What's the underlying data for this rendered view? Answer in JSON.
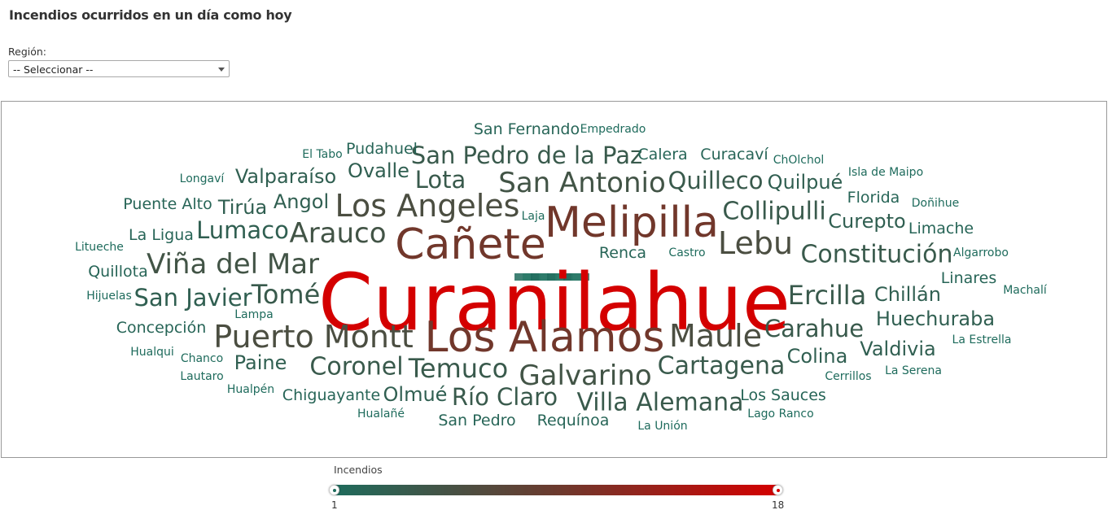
{
  "page": {
    "title": "Incendios ocurridos en un día como hoy",
    "region_label": "Región:",
    "region_select_value": "-- Seleccionar --"
  },
  "colors": {
    "low": "#1e6b5c",
    "mid": "#6b3a2e",
    "high": "#d40000"
  },
  "legend": {
    "title": "Incendios",
    "min": "1",
    "max": "18"
  },
  "words": [
    {
      "text": "Curanilahue",
      "value": 18
    },
    {
      "text": "Los Alamos",
      "value": 10
    },
    {
      "text": "Cañete",
      "value": 10
    },
    {
      "text": "Melipilla",
      "value": 10
    },
    {
      "text": "Puerto Montt",
      "value": 6
    },
    {
      "text": "Los Angeles",
      "value": 6
    },
    {
      "text": "Lebu",
      "value": 6
    },
    {
      "text": "Maule",
      "value": 6
    },
    {
      "text": "Arauco",
      "value": 5
    },
    {
      "text": "Viña del Mar",
      "value": 5
    },
    {
      "text": "San Antonio",
      "value": 5
    },
    {
      "text": "Galvarino",
      "value": 5
    },
    {
      "text": "Tomé",
      "value": 4
    },
    {
      "text": "Ercilla",
      "value": 4
    },
    {
      "text": "Temuco",
      "value": 4
    },
    {
      "text": "Coronel",
      "value": 4
    },
    {
      "text": "Villa Alemana",
      "value": 4
    },
    {
      "text": "Cartagena",
      "value": 4
    },
    {
      "text": "Collipulli",
      "value": 4
    },
    {
      "text": "Constitución",
      "value": 4
    },
    {
      "text": "San Pedro de la Paz",
      "value": 4
    },
    {
      "text": "Quilleco",
      "value": 4
    },
    {
      "text": "Río Claro",
      "value": 4
    },
    {
      "text": "Carahue",
      "value": 4
    },
    {
      "text": "Lota",
      "value": 4
    },
    {
      "text": "San Javier",
      "value": 3
    },
    {
      "text": "Lumaco",
      "value": 3
    },
    {
      "text": "Huechuraba",
      "value": 3
    },
    {
      "text": "Chillán",
      "value": 3
    },
    {
      "text": "Valdivia",
      "value": 3
    },
    {
      "text": "Colina",
      "value": 3
    },
    {
      "text": "Curepto",
      "value": 3
    },
    {
      "text": "Quilpué",
      "value": 3
    },
    {
      "text": "Valparaíso",
      "value": 3
    },
    {
      "text": "Ovalle",
      "value": 3
    },
    {
      "text": "Angol",
      "value": 3
    },
    {
      "text": "Tirúa",
      "value": 3
    },
    {
      "text": "Paine",
      "value": 3
    },
    {
      "text": "Olmué",
      "value": 3
    },
    {
      "text": "Pudahuel",
      "value": 2
    },
    {
      "text": "San Fernando",
      "value": 2
    },
    {
      "text": "Calera",
      "value": 2
    },
    {
      "text": "Curacaví",
      "value": 2
    },
    {
      "text": "Puente Alto",
      "value": 2
    },
    {
      "text": "La Ligua",
      "value": 2
    },
    {
      "text": "Quillota",
      "value": 2
    },
    {
      "text": "Concepción",
      "value": 2
    },
    {
      "text": "Chiguayante",
      "value": 2
    },
    {
      "text": "San Pedro",
      "value": 2
    },
    {
      "text": "Requínoa",
      "value": 2
    },
    {
      "text": "Los Sauces",
      "value": 2
    },
    {
      "text": "Florida",
      "value": 2
    },
    {
      "text": "Limache",
      "value": 2
    },
    {
      "text": "Linares",
      "value": 2
    },
    {
      "text": "Renca",
      "value": 2
    },
    {
      "text": "El Tabo",
      "value": 1
    },
    {
      "text": "Longaví",
      "value": 1
    },
    {
      "text": "Litueche",
      "value": 1
    },
    {
      "text": "Hijuelas",
      "value": 1
    },
    {
      "text": "Lampa",
      "value": 1
    },
    {
      "text": "Hualqui",
      "value": 1
    },
    {
      "text": "Chanco",
      "value": 1
    },
    {
      "text": "Lautaro",
      "value": 1
    },
    {
      "text": "Hualpén",
      "value": 1
    },
    {
      "text": "Hualañé",
      "value": 1
    },
    {
      "text": "Empedrado",
      "value": 1
    },
    {
      "text": "Laja",
      "value": 1
    },
    {
      "text": "Castro",
      "value": 1
    },
    {
      "text": "ChOlchol",
      "value": 1
    },
    {
      "text": "Isla de Maipo",
      "value": 1
    },
    {
      "text": "Doñihue",
      "value": 1
    },
    {
      "text": "Algarrobo",
      "value": 1
    },
    {
      "text": "Machalí",
      "value": 1
    },
    {
      "text": "La Estrella",
      "value": 1
    },
    {
      "text": "Cerrillos",
      "value": 1
    },
    {
      "text": "La Serena",
      "value": 1
    },
    {
      "text": "Lago Ranco",
      "value": 1
    },
    {
      "text": "La Unión",
      "value": 1
    }
  ]
}
